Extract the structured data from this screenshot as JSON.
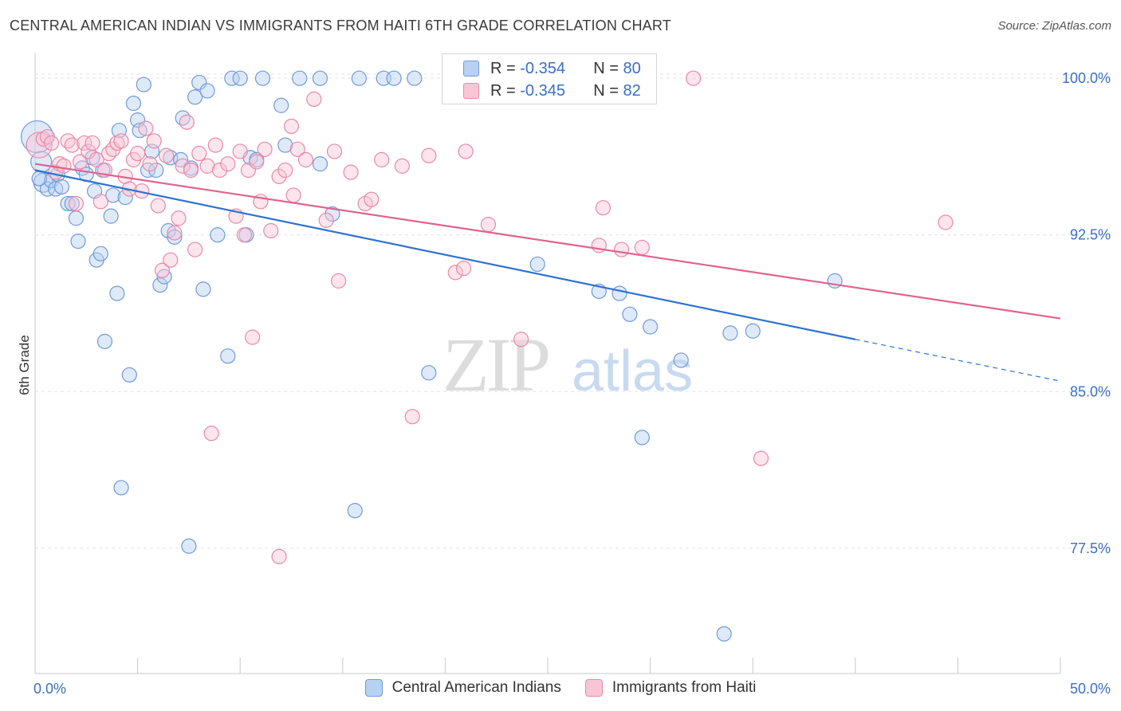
{
  "title": "CENTRAL AMERICAN INDIAN VS IMMIGRANTS FROM HAITI 6TH GRADE CORRELATION CHART",
  "source": "Source: ZipAtlas.com",
  "watermark": {
    "zip": "ZIP",
    "atlas": "atlas"
  },
  "legend": {
    "r_label": "R =",
    "n_label": "N =",
    "rows": [
      {
        "r": "-0.354",
        "n": "80",
        "fill": "#b8d1f2",
        "stroke": "#6f9ad8"
      },
      {
        "r": "-0.345",
        "n": "82",
        "fill": "#f8c5d5",
        "stroke": "#e889a8"
      }
    ]
  },
  "chart_data": {
    "type": "scatter",
    "title": "CENTRAL AMERICAN INDIAN VS IMMIGRANTS FROM HAITI 6TH GRADE CORRELATION CHART",
    "xlabel": "",
    "ylabel": "6th Grade",
    "xlim": [
      0,
      50
    ],
    "ylim": [
      71.5,
      101
    ],
    "x_tick_labels": [
      "0.0%",
      "50.0%"
    ],
    "y_ticks": [
      {
        "value": 100.0,
        "label": "100.0%"
      },
      {
        "value": 92.5,
        "label": "92.5%"
      },
      {
        "value": 85.0,
        "label": "85.0%"
      },
      {
        "value": 77.5,
        "label": "77.5%"
      }
    ],
    "grid": true,
    "legend_position": "top-center",
    "series": [
      {
        "name": "Central American Indians",
        "color": "#4a85d6",
        "trend": {
          "x0": 0,
          "y0": 95.6,
          "x1": 40,
          "y1": 87.5,
          "dash_to_x": 50,
          "dash_to_y": 85.5
        },
        "points": [
          [
            0.1,
            97.2
          ],
          [
            0.3,
            96.0
          ],
          [
            0.4,
            95.0
          ],
          [
            0.6,
            94.7
          ],
          [
            0.8,
            95.1
          ],
          [
            1.0,
            94.7
          ],
          [
            1.1,
            95.4
          ],
          [
            1.3,
            94.8
          ],
          [
            1.6,
            94.0
          ],
          [
            1.8,
            94.0
          ],
          [
            2.0,
            93.3
          ],
          [
            2.1,
            92.2
          ],
          [
            2.3,
            95.7
          ],
          [
            2.5,
            95.4
          ],
          [
            2.8,
            96.2
          ],
          [
            2.9,
            94.6
          ],
          [
            3.0,
            91.3
          ],
          [
            3.2,
            91.6
          ],
          [
            3.3,
            95.6
          ],
          [
            3.4,
            87.4
          ],
          [
            3.7,
            93.4
          ],
          [
            3.8,
            94.4
          ],
          [
            4.0,
            89.7
          ],
          [
            4.1,
            97.5
          ],
          [
            4.2,
            80.4
          ],
          [
            4.4,
            94.3
          ],
          [
            4.6,
            85.8
          ],
          [
            4.8,
            98.8
          ],
          [
            5.0,
            98.0
          ],
          [
            5.1,
            97.5
          ],
          [
            5.3,
            99.7
          ],
          [
            5.5,
            95.6
          ],
          [
            5.7,
            96.5
          ],
          [
            5.9,
            95.6
          ],
          [
            6.1,
            90.1
          ],
          [
            6.3,
            90.5
          ],
          [
            6.5,
            92.7
          ],
          [
            6.6,
            96.2
          ],
          [
            6.8,
            92.4
          ],
          [
            7.1,
            96.1
          ],
          [
            7.2,
            98.1
          ],
          [
            7.5,
            77.6
          ],
          [
            7.6,
            95.7
          ],
          [
            7.8,
            99.1
          ],
          [
            8.0,
            99.8
          ],
          [
            8.2,
            89.9
          ],
          [
            8.4,
            99.4
          ],
          [
            8.9,
            92.5
          ],
          [
            9.4,
            86.7
          ],
          [
            9.6,
            100.0
          ],
          [
            10.0,
            100.0
          ],
          [
            10.3,
            92.5
          ],
          [
            10.5,
            96.2
          ],
          [
            10.8,
            96.1
          ],
          [
            11.1,
            100.0
          ],
          [
            12.0,
            98.7
          ],
          [
            12.2,
            96.8
          ],
          [
            12.9,
            100.0
          ],
          [
            13.9,
            100.0
          ],
          [
            13.9,
            95.9
          ],
          [
            14.5,
            93.5
          ],
          [
            15.6,
            79.3
          ],
          [
            15.8,
            100.0
          ],
          [
            17.0,
            100.0
          ],
          [
            17.5,
            100.0
          ],
          [
            18.5,
            100.0
          ],
          [
            19.2,
            85.9
          ],
          [
            23.0,
            100.0
          ],
          [
            24.5,
            91.1
          ],
          [
            27.5,
            89.8
          ],
          [
            28.5,
            89.7
          ],
          [
            29.0,
            88.7
          ],
          [
            29.6,
            82.8
          ],
          [
            30.0,
            88.1
          ],
          [
            31.5,
            86.5
          ],
          [
            33.6,
            73.4
          ],
          [
            33.9,
            87.8
          ],
          [
            35.0,
            87.9
          ],
          [
            39.0,
            90.3
          ],
          [
            0.2,
            95.2
          ]
        ]
      },
      {
        "name": "Immigrants from Haiti",
        "color": "#e0638f",
        "trend": {
          "x0": 0,
          "y0": 95.9,
          "x1": 50,
          "y1": 88.5
        },
        "points": [
          [
            0.2,
            96.8
          ],
          [
            0.4,
            97.1
          ],
          [
            0.6,
            97.2
          ],
          [
            0.8,
            96.9
          ],
          [
            1.0,
            95.5
          ],
          [
            1.2,
            95.9
          ],
          [
            1.4,
            95.8
          ],
          [
            1.6,
            97.0
          ],
          [
            1.8,
            96.8
          ],
          [
            2.0,
            94.0
          ],
          [
            2.2,
            96.0
          ],
          [
            2.4,
            96.9
          ],
          [
            2.6,
            96.5
          ],
          [
            2.8,
            96.9
          ],
          [
            3.0,
            96.1
          ],
          [
            3.2,
            94.1
          ],
          [
            3.4,
            95.6
          ],
          [
            3.6,
            96.4
          ],
          [
            3.8,
            96.6
          ],
          [
            4.0,
            96.9
          ],
          [
            4.2,
            97.0
          ],
          [
            4.4,
            95.3
          ],
          [
            4.6,
            94.7
          ],
          [
            4.8,
            96.1
          ],
          [
            5.0,
            96.4
          ],
          [
            5.2,
            94.6
          ],
          [
            5.4,
            97.6
          ],
          [
            5.6,
            95.9
          ],
          [
            5.8,
            97.0
          ],
          [
            6.0,
            93.9
          ],
          [
            6.2,
            90.8
          ],
          [
            6.4,
            96.3
          ],
          [
            6.6,
            91.3
          ],
          [
            6.8,
            92.6
          ],
          [
            7.0,
            93.3
          ],
          [
            7.2,
            95.8
          ],
          [
            7.4,
            97.9
          ],
          [
            7.6,
            95.6
          ],
          [
            7.8,
            91.8
          ],
          [
            8.0,
            96.4
          ],
          [
            8.4,
            95.8
          ],
          [
            8.6,
            83.0
          ],
          [
            8.8,
            96.8
          ],
          [
            9.0,
            95.6
          ],
          [
            9.4,
            95.9
          ],
          [
            9.8,
            93.4
          ],
          [
            10.0,
            96.5
          ],
          [
            10.2,
            92.5
          ],
          [
            10.4,
            95.6
          ],
          [
            10.8,
            96.0
          ],
          [
            10.6,
            87.6
          ],
          [
            11.0,
            94.1
          ],
          [
            11.2,
            96.6
          ],
          [
            11.5,
            92.7
          ],
          [
            11.9,
            95.3
          ],
          [
            12.2,
            95.6
          ],
          [
            12.5,
            97.7
          ],
          [
            12.6,
            94.4
          ],
          [
            12.8,
            96.6
          ],
          [
            11.9,
            77.1
          ],
          [
            13.2,
            96.1
          ],
          [
            13.6,
            99.0
          ],
          [
            14.2,
            93.2
          ],
          [
            14.6,
            96.5
          ],
          [
            14.8,
            90.3
          ],
          [
            15.4,
            95.5
          ],
          [
            16.1,
            94.0
          ],
          [
            16.4,
            94.2
          ],
          [
            16.9,
            96.1
          ],
          [
            17.9,
            95.8
          ],
          [
            18.4,
            83.8
          ],
          [
            19.2,
            96.3
          ],
          [
            20.5,
            90.7
          ],
          [
            20.9,
            90.9
          ],
          [
            21.0,
            96.5
          ],
          [
            22.1,
            93.0
          ],
          [
            23.7,
            87.5
          ],
          [
            27.5,
            92.0
          ],
          [
            27.7,
            93.8
          ],
          [
            28.6,
            91.8
          ],
          [
            29.6,
            91.9
          ],
          [
            32.1,
            100.0
          ]
        ]
      }
    ],
    "extra_points": [
      [
        35.4,
        81.8
      ],
      [
        44.4,
        93.1
      ]
    ]
  }
}
